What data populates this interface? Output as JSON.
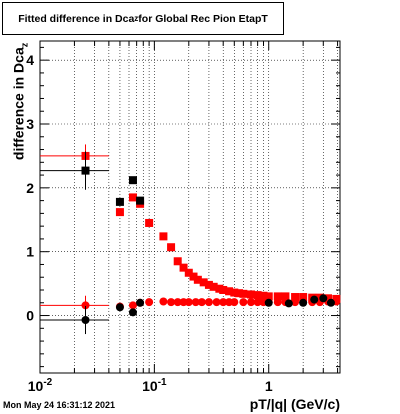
{
  "title_main": "Fitted difference in Dca",
  "title_sub": "z",
  "title_tail": " for Global Rec Pion EtapT",
  "ylabel_main": "difference in Dca",
  "ylabel_sub": "z",
  "xlabel": "pT/|q| (GeV/c)",
  "timestamp": "Mon May 24 16:31:12 2021",
  "chart_data": {
    "type": "scatter",
    "x_scale": "log",
    "xlim": [
      0.01,
      4.2
    ],
    "ylim": [
      -0.9,
      4.3
    ],
    "grid": true,
    "x_ticks": [
      {
        "value": 0.01,
        "label": "10",
        "sup": "-2"
      },
      {
        "value": 0.1,
        "label": "10",
        "sup": "-1"
      },
      {
        "value": 1,
        "label": "1",
        "sup": ""
      }
    ],
    "y_ticks": [
      0,
      1,
      2,
      3,
      4
    ],
    "colors": {
      "red_series": "#ff0000",
      "black_series": "#000000"
    },
    "series": [
      {
        "color": "#ff0000",
        "marker": "square",
        "points": [
          {
            "x": 0.025,
            "y": 2.5,
            "xerr": [
              0.01,
              0.04
            ],
            "yerr": 0.18
          },
          {
            "x": 0.05,
            "y": 1.62
          },
          {
            "x": 0.065,
            "y": 1.85
          },
          {
            "x": 0.075,
            "y": 1.75
          },
          {
            "x": 0.09,
            "y": 1.45
          },
          {
            "x": 0.12,
            "y": 1.24
          },
          {
            "x": 0.14,
            "y": 1.07
          },
          {
            "x": 0.16,
            "y": 0.85
          },
          {
            "x": 0.18,
            "y": 0.75
          },
          {
            "x": 0.2,
            "y": 0.67
          },
          {
            "x": 0.22,
            "y": 0.61
          },
          {
            "x": 0.24,
            "y": 0.56
          },
          {
            "x": 0.27,
            "y": 0.52
          },
          {
            "x": 0.3,
            "y": 0.48
          },
          {
            "x": 0.33,
            "y": 0.45
          },
          {
            "x": 0.37,
            "y": 0.42
          },
          {
            "x": 0.4,
            "y": 0.4
          },
          {
            "x": 0.45,
            "y": 0.38
          },
          {
            "x": 0.5,
            "y": 0.36
          },
          {
            "x": 0.55,
            "y": 0.35
          },
          {
            "x": 0.6,
            "y": 0.34
          },
          {
            "x": 0.7,
            "y": 0.33
          },
          {
            "x": 0.8,
            "y": 0.32
          },
          {
            "x": 0.9,
            "y": 0.31
          },
          {
            "x": 1.0,
            "y": 0.3
          },
          {
            "x": 1.2,
            "y": 0.3
          },
          {
            "x": 1.4,
            "y": 0.3
          },
          {
            "x": 1.7,
            "y": 0.29
          },
          {
            "x": 2.0,
            "y": 0.29
          },
          {
            "x": 2.4,
            "y": 0.28
          },
          {
            "x": 2.8,
            "y": 0.28
          },
          {
            "x": 3.3,
            "y": 0.27
          },
          {
            "x": 3.9,
            "y": 0.26
          }
        ]
      },
      {
        "color": "#000000",
        "marker": "square",
        "points": [
          {
            "x": 0.025,
            "y": 2.27,
            "xerr": [
              0.01,
              0.04
            ],
            "yerr": 0.3
          },
          {
            "x": 0.05,
            "y": 1.78
          },
          {
            "x": 0.065,
            "y": 2.12
          },
          {
            "x": 0.075,
            "y": 1.8
          }
        ]
      },
      {
        "color": "#ff0000",
        "marker": "circle",
        "points": [
          {
            "x": 0.025,
            "y": 0.16,
            "xerr": [
              0.01,
              0.04
            ],
            "yerr": 0.15
          },
          {
            "x": 0.05,
            "y": 0.14
          },
          {
            "x": 0.065,
            "y": 0.16
          },
          {
            "x": 0.075,
            "y": 0.2
          },
          {
            "x": 0.09,
            "y": 0.21
          },
          {
            "x": 0.12,
            "y": 0.22
          },
          {
            "x": 0.14,
            "y": 0.21
          },
          {
            "x": 0.16,
            "y": 0.21
          },
          {
            "x": 0.18,
            "y": 0.21
          },
          {
            "x": 0.2,
            "y": 0.21
          },
          {
            "x": 0.23,
            "y": 0.21
          },
          {
            "x": 0.26,
            "y": 0.21
          },
          {
            "x": 0.3,
            "y": 0.21
          },
          {
            "x": 0.35,
            "y": 0.21
          },
          {
            "x": 0.4,
            "y": 0.21
          },
          {
            "x": 0.45,
            "y": 0.21
          },
          {
            "x": 0.5,
            "y": 0.21
          },
          {
            "x": 0.6,
            "y": 0.21
          },
          {
            "x": 0.7,
            "y": 0.21
          },
          {
            "x": 0.8,
            "y": 0.21
          },
          {
            "x": 0.9,
            "y": 0.21
          },
          {
            "x": 1.0,
            "y": 0.21
          },
          {
            "x": 1.2,
            "y": 0.21
          },
          {
            "x": 1.4,
            "y": 0.21
          },
          {
            "x": 1.7,
            "y": 0.21
          },
          {
            "x": 2.0,
            "y": 0.21
          },
          {
            "x": 2.4,
            "y": 0.21
          },
          {
            "x": 2.8,
            "y": 0.21
          },
          {
            "x": 3.3,
            "y": 0.22
          },
          {
            "x": 3.9,
            "y": 0.22
          }
        ]
      },
      {
        "color": "#000000",
        "marker": "circle",
        "points": [
          {
            "x": 0.025,
            "y": -0.07,
            "xerr": [
              0.01,
              0.04
            ],
            "yerr": 0.22
          },
          {
            "x": 0.05,
            "y": 0.13
          },
          {
            "x": 0.065,
            "y": 0.05
          },
          {
            "x": 0.075,
            "y": 0.2
          },
          {
            "x": 1.0,
            "y": 0.2
          },
          {
            "x": 1.5,
            "y": 0.19
          },
          {
            "x": 2.0,
            "y": 0.2
          },
          {
            "x": 2.5,
            "y": 0.25
          },
          {
            "x": 3.0,
            "y": 0.27
          },
          {
            "x": 3.5,
            "y": 0.2
          }
        ]
      }
    ]
  }
}
